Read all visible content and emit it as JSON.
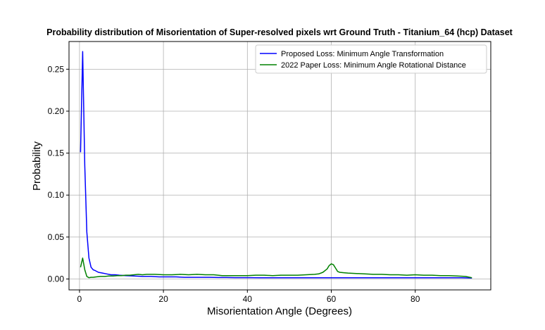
{
  "chart_data": {
    "type": "line",
    "title": "Probability distribution of Misorientation of Super-resolved pixels wrt Ground Truth - Titanium_64 (hcp) Dataset",
    "xlabel": "Misorientation Angle (Degrees)",
    "ylabel": "Probability",
    "xlim": [
      -2.5,
      98
    ],
    "ylim": [
      -0.013,
      0.283
    ],
    "xticks": [
      0,
      20,
      40,
      60,
      80
    ],
    "yticks": [
      0.0,
      0.05,
      0.1,
      0.15,
      0.2,
      0.25
    ],
    "xtick_labels": [
      "0",
      "20",
      "40",
      "60",
      "80"
    ],
    "ytick_labels": [
      "0.00",
      "0.05",
      "0.10",
      "0.15",
      "0.20",
      "0.25"
    ],
    "grid": true,
    "legend_position": "top-right",
    "series": [
      {
        "name": "Proposed Loss: Minimum Angle Transformation",
        "color": "#0000ff",
        "x": [
          0.25,
          0.75,
          1.25,
          1.75,
          2.25,
          2.75,
          3.25,
          3.75,
          4.5,
          5.5,
          6.5,
          7.5,
          8.5,
          9.5,
          11,
          13,
          15,
          17,
          19,
          21,
          23,
          25,
          27,
          29,
          31,
          33,
          35,
          37,
          39,
          41,
          43,
          45,
          47,
          49,
          51,
          53,
          55,
          57,
          59,
          61,
          63,
          65,
          67,
          69,
          71,
          73,
          75,
          77,
          79,
          81,
          83,
          85,
          87,
          89,
          91,
          93.5
        ],
        "y": [
          0.151,
          0.271,
          0.135,
          0.056,
          0.025,
          0.014,
          0.011,
          0.01,
          0.008,
          0.007,
          0.006,
          0.005,
          0.005,
          0.0045,
          0.004,
          0.0035,
          0.003,
          0.003,
          0.0025,
          0.0025,
          0.0025,
          0.002,
          0.002,
          0.002,
          0.002,
          0.0018,
          0.0018,
          0.0016,
          0.0016,
          0.0016,
          0.0015,
          0.0015,
          0.0015,
          0.0014,
          0.0014,
          0.0014,
          0.0014,
          0.0014,
          0.0014,
          0.0014,
          0.0014,
          0.0014,
          0.0014,
          0.0014,
          0.0014,
          0.0014,
          0.0014,
          0.0014,
          0.0014,
          0.0014,
          0.0014,
          0.0014,
          0.0014,
          0.0014,
          0.0014,
          0.0012
        ]
      },
      {
        "name": "2022 Paper Loss: Minimum Angle Rotational Distance",
        "color": "#008000",
        "x": [
          0.25,
          0.75,
          1.25,
          1.75,
          2.25,
          2.75,
          3.25,
          4,
          5,
          6,
          7,
          8,
          9,
          10,
          11,
          12,
          13,
          14,
          15,
          16,
          18,
          20,
          22,
          24,
          26,
          28,
          30,
          32,
          34,
          36,
          38,
          40,
          42,
          44,
          46,
          48,
          50,
          52,
          54,
          56,
          57,
          58,
          59,
          59.5,
          60,
          60.5,
          61,
          61.5,
          62,
          63,
          64,
          66,
          68,
          70,
          72,
          74,
          76,
          78,
          80,
          82,
          84,
          86,
          88,
          90,
          92,
          93.5
        ],
        "y": [
          0.014,
          0.025,
          0.011,
          0.003,
          0.0015,
          0.002,
          0.002,
          0.0025,
          0.003,
          0.003,
          0.0035,
          0.0035,
          0.004,
          0.004,
          0.0045,
          0.0045,
          0.005,
          0.0055,
          0.005,
          0.0055,
          0.0055,
          0.005,
          0.005,
          0.0055,
          0.005,
          0.0055,
          0.005,
          0.005,
          0.004,
          0.004,
          0.004,
          0.004,
          0.0045,
          0.0045,
          0.004,
          0.0045,
          0.0045,
          0.0045,
          0.005,
          0.0055,
          0.006,
          0.008,
          0.012,
          0.016,
          0.018,
          0.017,
          0.013,
          0.009,
          0.008,
          0.0075,
          0.007,
          0.0065,
          0.006,
          0.0055,
          0.0055,
          0.005,
          0.005,
          0.0045,
          0.005,
          0.0045,
          0.0045,
          0.004,
          0.004,
          0.0035,
          0.003,
          0.0015
        ]
      }
    ]
  }
}
